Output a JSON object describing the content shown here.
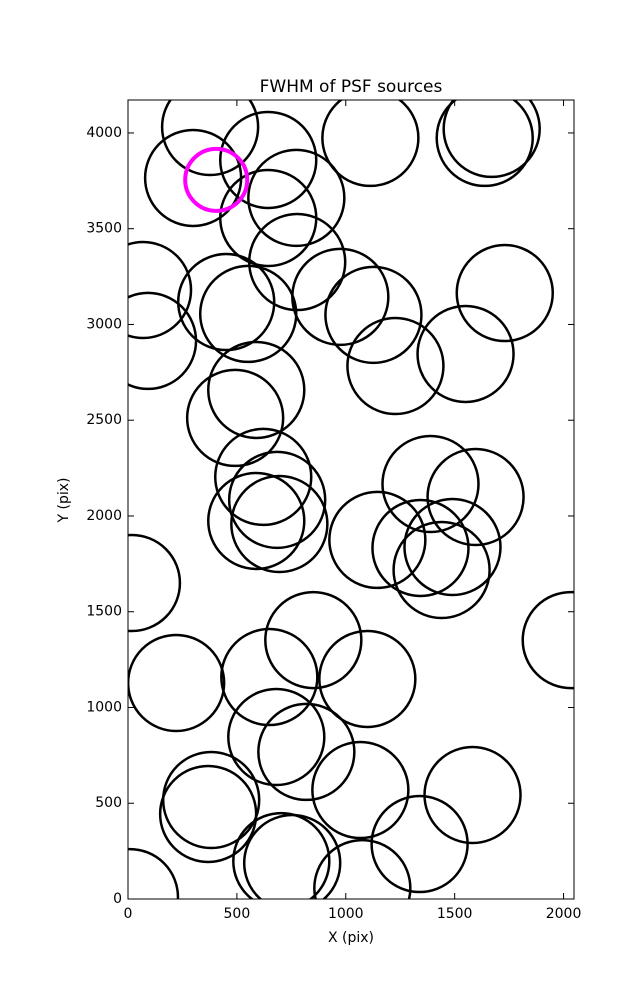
{
  "chart_data": {
    "type": "scatter",
    "title": "FWHM of PSF sources",
    "x_label": "X (pix)",
    "y_label": "Y (pix)",
    "xlim": [
      0,
      2048
    ],
    "ylim": [
      0,
      4172
    ],
    "xticks": [
      0,
      500,
      1000,
      1500,
      2000
    ],
    "yticks": [
      0,
      500,
      1000,
      1500,
      2000,
      2500,
      3000,
      3500,
      4000
    ],
    "series": [
      {
        "color": "#000000",
        "x": [
          377,
          644,
          299,
          773,
          644,
          777,
          1113,
          1638,
          1670,
          69,
          92,
          451,
          552,
          975,
          1127,
          1228,
          1550,
          1730,
          589,
          492,
          621,
          685,
          589,
          695,
          1145,
          1343,
          1389,
          1596,
          1490,
          1440,
          18,
          2033,
          221,
          649,
          851,
          1099,
          681,
          819,
          382,
          368,
          1067,
          704,
          754,
          1076,
          1339,
          1582,
          9
        ],
        "values": [
          4031,
          3859,
          3765,
          3661,
          3556,
          3326,
          3974,
          3974,
          4021,
          3180,
          2914,
          3117,
          3055,
          3144,
          3050,
          2783,
          2846,
          3164,
          2658,
          2512,
          2204,
          2084,
          1974,
          1958,
          1875,
          1833,
          2167,
          2099,
          1838,
          1718,
          1650,
          1352,
          1128,
          1159,
          1352,
          1149,
          846,
          768,
          517,
          444,
          569,
          198,
          188,
          57,
          287,
          543,
          10
        ]
      },
      {
        "color": "#ff00ff",
        "x": [
          405
        ],
        "values": [
          3755
        ]
      }
    ]
  }
}
